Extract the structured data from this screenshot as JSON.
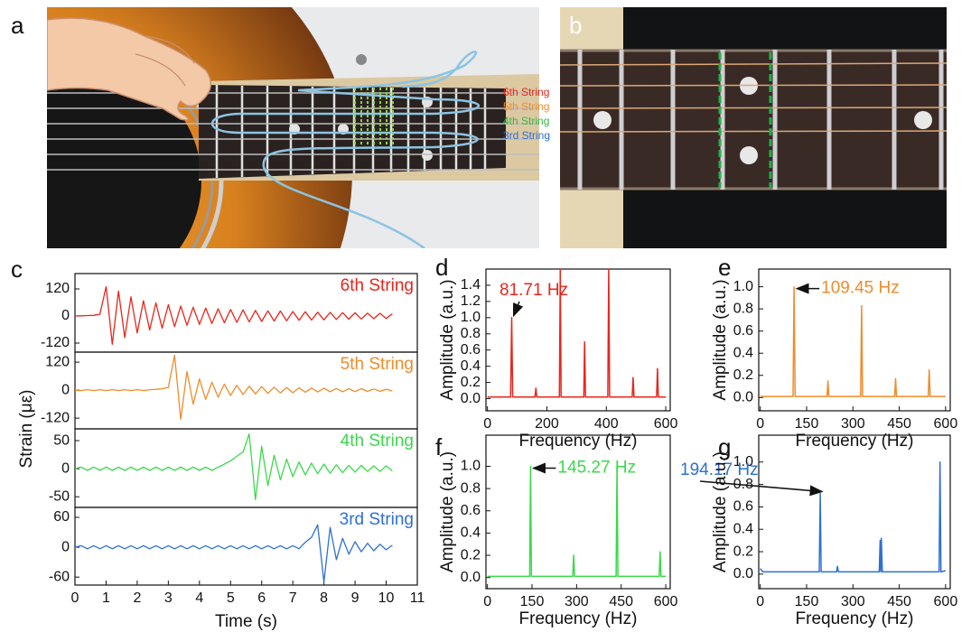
{
  "illustration": {
    "label": "a",
    "strings": [
      "6th String",
      "5th String",
      "4th String",
      "3rd String"
    ]
  },
  "photo": {
    "label": "b"
  },
  "chart_data": [
    {
      "type": "line",
      "panel": "c",
      "ylabel": "Strain (με)",
      "xlim": [
        0,
        11
      ],
      "ylim": [
        -160,
        188
      ],
      "yticks": [
        -120,
        0,
        120
      ],
      "x": [
        0,
        0.2,
        0.4,
        0.6,
        0.8,
        1,
        1.2,
        1.4,
        1.6,
        1.8,
        2,
        2.2,
        2.4,
        2.6,
        2.8,
        3,
        3.2,
        3.4,
        3.6,
        3.8,
        4,
        4.2,
        4.4,
        4.6,
        4.8,
        5,
        5.2,
        5.4,
        5.6,
        5.8,
        6,
        6.2,
        6.4,
        6.6,
        6.8,
        7,
        7.2,
        7.4,
        7.6,
        7.8,
        8,
        8.2,
        8.4,
        8.6,
        8.8,
        9,
        9.2,
        9.4,
        9.6,
        9.8,
        10,
        10.2
      ],
      "series": [
        {
          "name": "6th String",
          "color": "#e8251b",
          "values": [
            0,
            1,
            2,
            3,
            8,
            130,
            -125,
            110,
            -95,
            85,
            -75,
            68,
            -62,
            58,
            -54,
            50,
            -47,
            44,
            -41,
            39,
            -37,
            35,
            -33,
            32,
            -30,
            29,
            -28,
            27,
            -26,
            25,
            -24,
            23,
            -22,
            22,
            -21,
            20,
            -19,
            19,
            -18,
            17,
            -17,
            16,
            -15,
            15,
            -14,
            14,
            -13,
            13,
            -12,
            12,
            -11,
            10
          ]
        }
      ]
    },
    {
      "type": "line",
      "xlim": [
        0,
        11
      ],
      "ylim": [
        -166,
        163
      ],
      "yticks": [
        -120,
        0,
        120
      ],
      "x": [
        0,
        0.2,
        0.4,
        0.6,
        0.8,
        1,
        1.2,
        1.4,
        1.6,
        1.8,
        2,
        2.2,
        2.4,
        2.6,
        2.8,
        3,
        3.2,
        3.4,
        3.6,
        3.8,
        4,
        4.2,
        4.4,
        4.6,
        4.8,
        5,
        5.2,
        5.4,
        5.6,
        5.8,
        6,
        6.2,
        6.4,
        6.6,
        6.8,
        7,
        7.2,
        7.4,
        7.6,
        7.8,
        8,
        8.2,
        8.4,
        8.6,
        8.8,
        9,
        9.2,
        9.4,
        9.6,
        9.8,
        10,
        10.2
      ],
      "series": [
        {
          "name": "5th String",
          "color": "#ef8c2b",
          "values": [
            0,
            -2,
            2,
            -2,
            2,
            -2,
            2,
            -2,
            2,
            -2,
            2,
            -2,
            2,
            3,
            6,
            12,
            150,
            -125,
            80,
            -60,
            48,
            -40,
            34,
            -30,
            26,
            -23,
            21,
            -19,
            17,
            -16,
            15,
            -14,
            13,
            -12,
            11,
            -11,
            10,
            -9,
            9,
            -8,
            8,
            -7,
            7,
            -7,
            6,
            -6,
            6,
            -5,
            5,
            -5,
            4,
            -4
          ]
        }
      ]
    },
    {
      "type": "line",
      "xlim": [
        0,
        11
      ],
      "ylim": [
        -69,
        71
      ],
      "yticks": [
        -50,
        0,
        50
      ],
      "x": [
        0,
        0.2,
        0.4,
        0.6,
        0.8,
        1,
        1.2,
        1.4,
        1.6,
        1.8,
        2,
        2.2,
        2.4,
        2.6,
        2.8,
        3,
        3.2,
        3.4,
        3.6,
        3.8,
        4,
        4.2,
        4.4,
        4.6,
        4.8,
        5,
        5.2,
        5.4,
        5.6,
        5.8,
        6,
        6.2,
        6.4,
        6.6,
        6.8,
        7,
        7.2,
        7.4,
        7.6,
        7.8,
        8,
        8.2,
        8.4,
        8.6,
        8.8,
        9,
        9.2,
        9.4,
        9.6,
        9.8,
        10,
        10.2
      ],
      "series": [
        {
          "name": "4th String",
          "color": "#3bd94a",
          "values": [
            0,
            3,
            -3,
            3,
            -3,
            3,
            -3,
            3,
            -3,
            3,
            -3,
            3,
            -3,
            3,
            -3,
            3,
            -3,
            3,
            -3,
            3,
            -3,
            3,
            -3,
            3,
            8,
            14,
            22,
            30,
            62,
            -55,
            40,
            -30,
            24,
            -20,
            17,
            -14,
            12,
            -11,
            10,
            -9,
            8,
            -8,
            7,
            -7,
            6,
            -6,
            6,
            -5,
            5,
            -5,
            5,
            -4
          ]
        }
      ]
    },
    {
      "type": "line",
      "xlabel": "Time (s)",
      "xlim": [
        0,
        11
      ],
      "ylim": [
        -76,
        80
      ],
      "yticks": [
        -60,
        0,
        60
      ],
      "xticks": [
        0,
        1,
        2,
        3,
        4,
        5,
        6,
        7,
        8,
        9,
        10,
        11
      ],
      "x": [
        0,
        0.2,
        0.4,
        0.6,
        0.8,
        1,
        1.2,
        1.4,
        1.6,
        1.8,
        2,
        2.2,
        2.4,
        2.6,
        2.8,
        3,
        3.2,
        3.4,
        3.6,
        3.8,
        4,
        4.2,
        4.4,
        4.6,
        4.8,
        5,
        5.2,
        5.4,
        5.6,
        5.8,
        6,
        6.2,
        6.4,
        6.6,
        6.8,
        7,
        7.2,
        7.4,
        7.6,
        7.8,
        8,
        8.2,
        8.4,
        8.6,
        8.8,
        9,
        9.2,
        9.4,
        9.6,
        9.8,
        10,
        10.2
      ],
      "series": [
        {
          "name": "3rd String",
          "color": "#2e6fd6",
          "values": [
            0,
            3,
            -3,
            3,
            -3,
            3,
            -3,
            3,
            -3,
            3,
            -3,
            3,
            -3,
            3,
            -3,
            3,
            -3,
            3,
            -3,
            3,
            -3,
            3,
            -3,
            3,
            -3,
            3,
            -3,
            3,
            -3,
            3,
            -3,
            3,
            -3,
            3,
            -3,
            3,
            -3,
            10,
            20,
            45,
            -70,
            40,
            -25,
            18,
            -14,
            11,
            -9,
            8,
            -7,
            6,
            -5,
            4
          ]
        }
      ]
    },
    {
      "type": "line",
      "panel": "d",
      "xlabel": "Frequency (Hz)",
      "ylabel": "Amplitude (a.u.)",
      "annotation": "81.71 Hz",
      "xlim": [
        -5,
        615
      ],
      "ylim": [
        -0.15,
        1.6
      ],
      "xticks": [
        0,
        200,
        400,
        600
      ],
      "yticks": [
        {
          "value": 0,
          "label": "0.0"
        },
        0.2,
        0.4,
        0.6,
        0.8,
        {
          "value": 1,
          "label": "1.0"
        },
        1.2,
        1.4
      ],
      "x": [
        0,
        78,
        81.71,
        85,
        160,
        163,
        166,
        242,
        245,
        248,
        324,
        327,
        330,
        405,
        408,
        411,
        487,
        490,
        493,
        569,
        572,
        575,
        600
      ],
      "series": [
        {
          "color": "#e8251b",
          "values": [
            0.02,
            0.02,
            1.0,
            0.02,
            0.02,
            0.13,
            0.02,
            0.02,
            1.6,
            0.02,
            0.02,
            0.7,
            0.02,
            0.02,
            1.6,
            0.02,
            0.02,
            0.26,
            0.02,
            0.02,
            0.37,
            0.02,
            0.02
          ]
        }
      ]
    },
    {
      "type": "line",
      "panel": "e",
      "xlabel": "Frequency (Hz)",
      "ylabel": "Amplitude (a.u.)",
      "annotation": "109.45 Hz",
      "xlim": [
        -5,
        615
      ],
      "ylim": [
        -0.12,
        1.16
      ],
      "xticks": [
        0,
        150,
        300,
        450,
        600
      ],
      "yticks": [
        {
          "value": 0,
          "label": "0.0"
        },
        0.2,
        0.4,
        0.6,
        0.8,
        {
          "value": 1,
          "label": "1.0"
        }
      ],
      "x": [
        0,
        106,
        109.45,
        113,
        216,
        219,
        222,
        325,
        328,
        331,
        435,
        438,
        441,
        544,
        547,
        550,
        600
      ],
      "series": [
        {
          "color": "#ef8c2b",
          "values": [
            0.01,
            0.01,
            1.0,
            0.01,
            0.01,
            0.15,
            0.01,
            0.01,
            0.83,
            0.01,
            0.01,
            0.17,
            0.01,
            0.01,
            0.25,
            0.01,
            0.01
          ]
        }
      ]
    },
    {
      "type": "line",
      "panel": "f",
      "xlabel": "Frequency (Hz)",
      "ylabel": "Amplitude (a.u.)",
      "annotation": "145.27 Hz",
      "xlim": [
        -5,
        615
      ],
      "ylim": [
        -0.1,
        1.28
      ],
      "xticks": [
        0,
        150,
        300,
        450,
        600
      ],
      "yticks": [
        {
          "value": 0,
          "label": "0.0"
        },
        0.2,
        0.4,
        0.6,
        0.8,
        {
          "value": 1,
          "label": "1.0"
        }
      ],
      "x": [
        0,
        142,
        145.27,
        148,
        287,
        290,
        293,
        433,
        436,
        439,
        578,
        581,
        584,
        600
      ],
      "series": [
        {
          "color": "#3bd94a",
          "values": [
            0.01,
            0.01,
            1.0,
            0.01,
            0.01,
            0.2,
            0.01,
            0.01,
            1.0,
            0.01,
            0.01,
            0.23,
            0.01,
            0.01
          ]
        }
      ]
    },
    {
      "type": "line",
      "panel": "g",
      "xlabel": "Frequency (Hz)",
      "ylabel": "Amplitude (a.u.)",
      "annotation": "194.17 Hz",
      "xlim": [
        -5,
        615
      ],
      "ylim": [
        -0.13,
        1.24
      ],
      "xticks": [
        0,
        150,
        300,
        450,
        600
      ],
      "yticks": [
        {
          "value": 0,
          "label": "0.0"
        },
        0.2,
        0.4,
        0.6,
        0.8,
        {
          "value": 1,
          "label": "1.0"
        }
      ],
      "x": [
        0,
        5,
        10,
        191,
        194.17,
        197,
        247,
        250,
        253,
        385,
        388,
        390,
        392,
        395,
        579,
        582,
        585,
        600
      ],
      "series": [
        {
          "color": "#2e6fd6",
          "values": [
            0.05,
            0.03,
            0.02,
            0.02,
            0.72,
            0.02,
            0.02,
            0.07,
            0.02,
            0.02,
            0.3,
            0.02,
            0.32,
            0.02,
            0.02,
            1.0,
            0.02,
            0.03
          ]
        }
      ]
    }
  ]
}
